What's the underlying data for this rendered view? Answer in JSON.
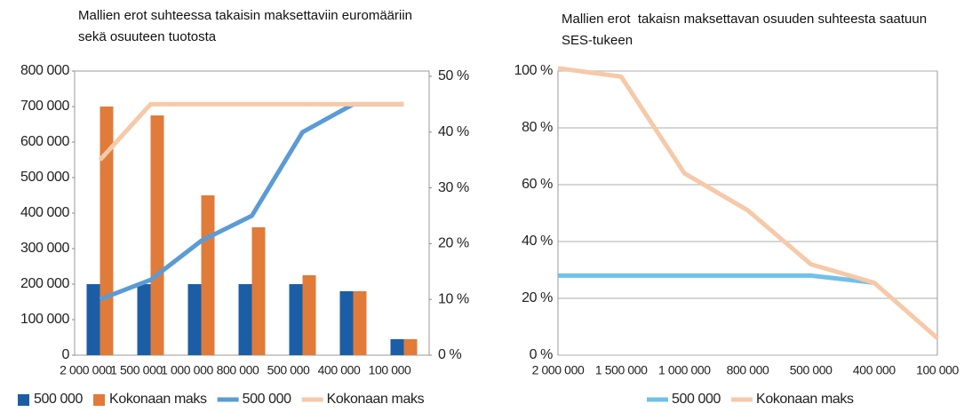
{
  "chart_data": [
    {
      "type": "combo",
      "title": "Mallien erot suhteessa takaisin maksettaviin euromääriin sekä osuuteen tuotosta",
      "categories": [
        "2 000 000",
        "1 500 000",
        "1 000 000",
        "800 000",
        "500 000",
        "400 000",
        "100 000"
      ],
      "series": [
        {
          "name": "500 000",
          "type": "bar",
          "color": "#1b5ea6",
          "values": [
            200000,
            200000,
            200000,
            200000,
            200000,
            180000,
            45000
          ]
        },
        {
          "name": "Kokonaan maks",
          "type": "bar",
          "color": "#e07b39",
          "values": [
            700000,
            675000,
            450000,
            360000,
            225000,
            180000,
            45000
          ]
        },
        {
          "name": "500 000",
          "type": "line",
          "axis": "y2",
          "color": "#5b9bd5",
          "values": [
            10,
            13.5,
            20.5,
            25,
            40,
            45,
            45
          ]
        },
        {
          "name": "Kokonaan maks",
          "type": "line",
          "axis": "y2",
          "color": "#f6c9a8",
          "values": [
            35,
            45,
            45,
            45,
            45,
            45,
            45
          ]
        }
      ],
      "ylim": [
        0,
        800000
      ],
      "yticks": [
        0,
        {
          "value": 100000,
          "label": "100 000"
        },
        {
          "value": 200000,
          "label": "200 000"
        },
        {
          "value": 300000,
          "label": "300 000"
        },
        {
          "value": 400000,
          "label": "400 000"
        },
        {
          "value": 500000,
          "label": "500 000"
        },
        {
          "value": 600000,
          "label": "600 000"
        },
        {
          "value": 700000,
          "label": "700 000"
        },
        {
          "value": 800000,
          "label": "800 000"
        }
      ],
      "y2lim": [
        0,
        50
      ],
      "y2ticks": [
        {
          "value": 0,
          "label": "0 %"
        },
        {
          "value": 10,
          "label": "10 %"
        },
        {
          "value": 20,
          "label": "20 %"
        },
        {
          "value": 30,
          "label": "30 %"
        },
        {
          "value": 40,
          "label": "40 %"
        },
        {
          "value": 50,
          "label": "50 %"
        }
      ],
      "grid": false,
      "legend": "bottom"
    },
    {
      "type": "line",
      "title": "Mallien erot  takaisn maksettavan osuuden suhteesta saatuun SES-tukeen",
      "categories": [
        "2 000 000",
        "1 500 000",
        "1 000 000",
        "800 000",
        "500 000",
        "400 000",
        "100 000"
      ],
      "series": [
        {
          "name": "500 000",
          "color": "#70c1ea",
          "values": [
            28,
            28,
            28,
            28,
            28,
            25.5,
            null
          ]
        },
        {
          "name": "Kokonaan maks",
          "color": "#f6c9a8",
          "values": [
            101,
            98,
            64,
            51,
            32,
            25.5,
            6
          ]
        }
      ],
      "ylim": [
        0,
        100
      ],
      "yticks": [
        {
          "value": 0,
          "label": "0 %"
        },
        {
          "value": 20,
          "label": "20 %"
        },
        {
          "value": 40,
          "label": "40 %"
        },
        {
          "value": 60,
          "label": "60 %"
        },
        {
          "value": 80,
          "label": "80 %"
        },
        {
          "value": 100,
          "label": "100 %"
        }
      ],
      "grid": true,
      "legend": "bottom"
    }
  ]
}
